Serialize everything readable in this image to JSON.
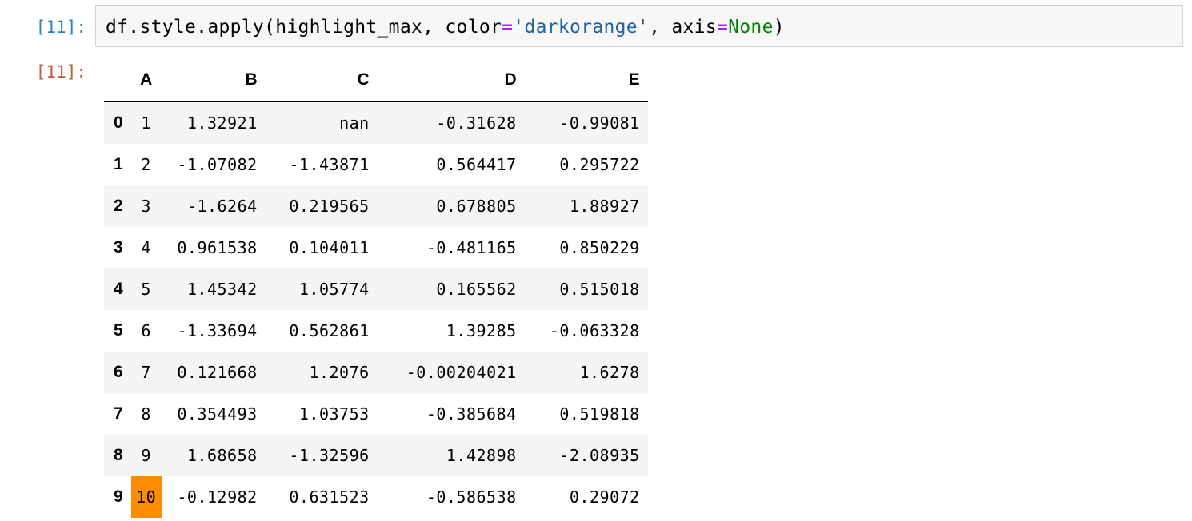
{
  "input_prompt": "[11]:",
  "output_prompt": "[11]:",
  "code": {
    "p1": "df.style.apply(highlight_max, color",
    "eq1": "=",
    "str": "'darkorange'",
    "p2": ", axis",
    "eq2": "=",
    "kw": "None",
    "p3": ")"
  },
  "colors": {
    "highlight": "#ff8c00",
    "input_prompt": "#307fc1",
    "output_prompt": "#bf5b3d"
  },
  "table": {
    "columns": [
      "A",
      "B",
      "C",
      "D",
      "E"
    ],
    "rows": [
      {
        "index": "0",
        "cells": [
          "1",
          "1.32921",
          "nan",
          "-0.31628",
          "-0.99081"
        ]
      },
      {
        "index": "1",
        "cells": [
          "2",
          "-1.07082",
          "-1.43871",
          "0.564417",
          "0.295722"
        ]
      },
      {
        "index": "2",
        "cells": [
          "3",
          "-1.6264",
          "0.219565",
          "0.678805",
          "1.88927"
        ]
      },
      {
        "index": "3",
        "cells": [
          "4",
          "0.961538",
          "0.104011",
          "-0.481165",
          "0.850229"
        ]
      },
      {
        "index": "4",
        "cells": [
          "5",
          "1.45342",
          "1.05774",
          "0.165562",
          "0.515018"
        ]
      },
      {
        "index": "5",
        "cells": [
          "6",
          "-1.33694",
          "0.562861",
          "1.39285",
          "-0.063328"
        ]
      },
      {
        "index": "6",
        "cells": [
          "7",
          "0.121668",
          "1.2076",
          "-0.00204021",
          "1.6278"
        ]
      },
      {
        "index": "7",
        "cells": [
          "8",
          "0.354493",
          "1.03753",
          "-0.385684",
          "0.519818"
        ]
      },
      {
        "index": "8",
        "cells": [
          "9",
          "1.68658",
          "-1.32596",
          "1.42898",
          "-2.08935"
        ]
      },
      {
        "index": "9",
        "cells": [
          "10",
          "-0.12982",
          "0.631523",
          "-0.586538",
          "0.29072"
        ]
      }
    ],
    "highlighted_cell": {
      "row": 9,
      "col": 0
    }
  }
}
